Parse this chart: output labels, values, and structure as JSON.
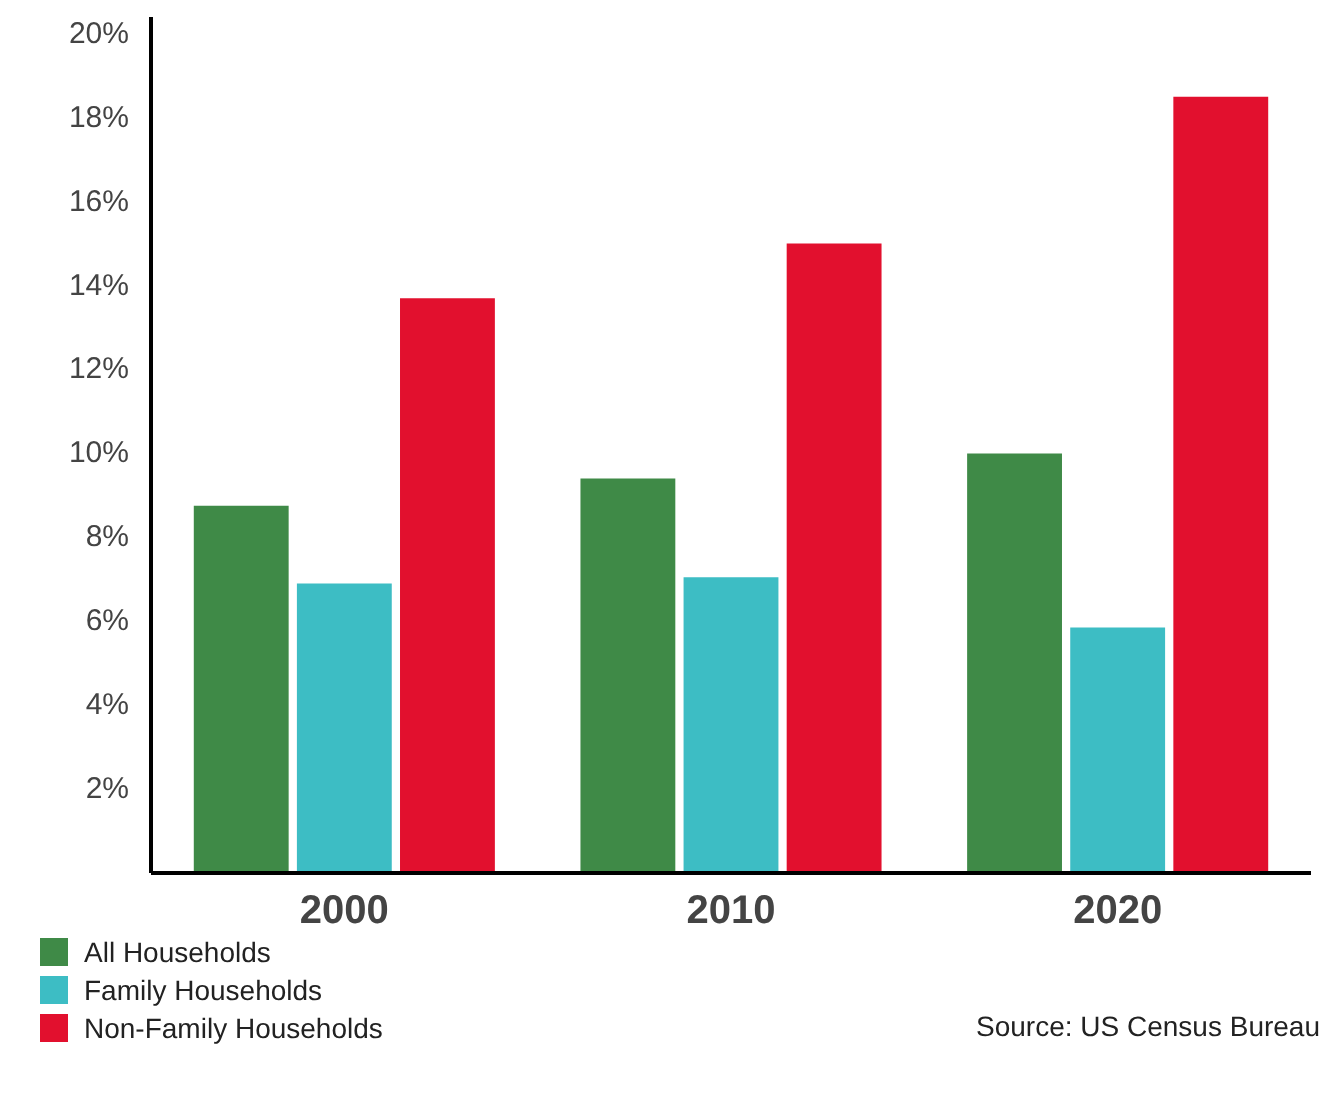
{
  "chart_data": {
    "type": "bar",
    "categories": [
      "2000",
      "2010",
      "2020"
    ],
    "series": [
      {
        "name": "All Households",
        "color": "#3f8a47",
        "values": [
          8.75,
          9.4,
          10.0
        ]
      },
      {
        "name": "Family Households",
        "color": "#3dbdc4",
        "values": [
          6.9,
          7.05,
          5.85
        ]
      },
      {
        "name": "Non-Family Households",
        "color": "#e2102e",
        "values": [
          13.7,
          15.0,
          18.5
        ]
      }
    ],
    "ylim": [
      0,
      20.4
    ],
    "yticks": [
      {
        "value": 2,
        "label": "2%"
      },
      {
        "value": 4,
        "label": "4%"
      },
      {
        "value": 6,
        "label": "6%"
      },
      {
        "value": 8,
        "label": "8%"
      },
      {
        "value": 10,
        "label": "10%"
      },
      {
        "value": 12,
        "label": "12%"
      },
      {
        "value": 14,
        "label": "14%"
      },
      {
        "value": 16,
        "label": "16%"
      },
      {
        "value": 18,
        "label": "18%"
      },
      {
        "value": 20,
        "label": "20%"
      }
    ],
    "grid": false,
    "legend": "bottom left",
    "annotations": [
      "Source: US Census Bureau"
    ]
  }
}
